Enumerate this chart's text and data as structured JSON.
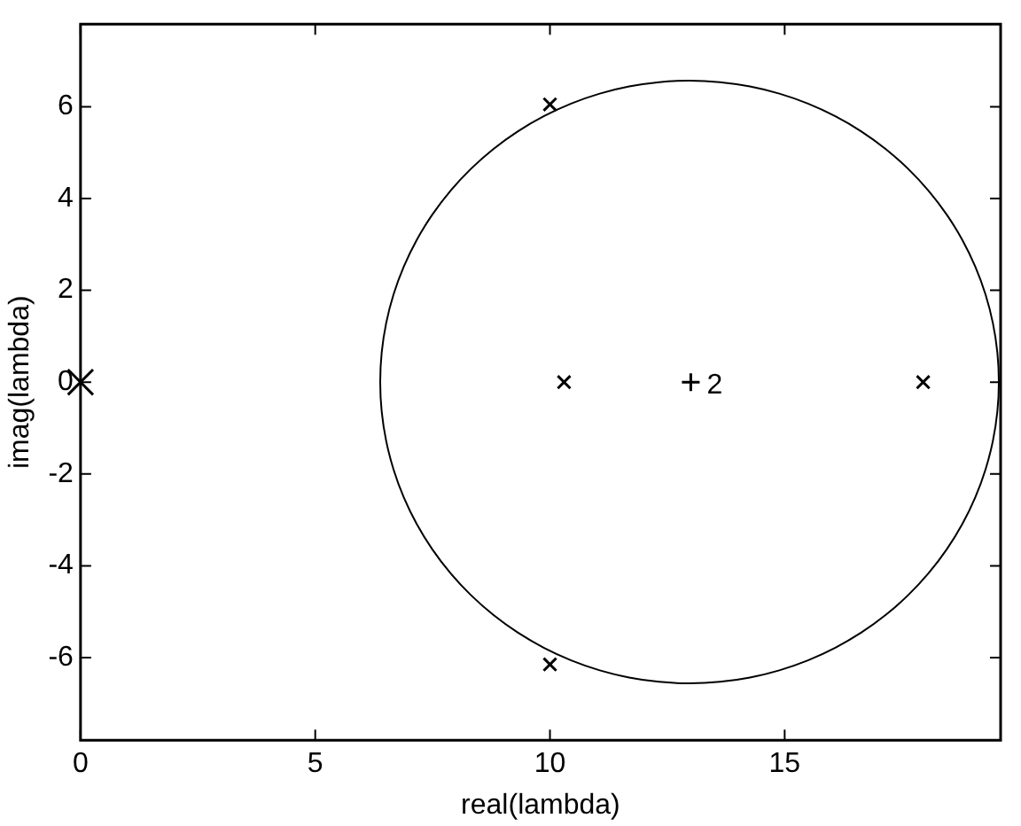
{
  "chart_data": {
    "type": "scatter",
    "xlabel": "real(lambda)",
    "ylabel": "imag(lambda)",
    "xlim": [
      0,
      19.6
    ],
    "ylim": [
      -7.8,
      7.8
    ],
    "xticks": [
      0,
      5,
      10,
      15
    ],
    "yticks": [
      -6,
      -4,
      -2,
      0,
      2,
      4,
      6
    ],
    "grid": false,
    "legend": false,
    "marker": "cross",
    "series": [
      {
        "type": "scatter",
        "color": "#000000",
        "x": [
          0
        ],
        "values": [
          0
        ]
      },
      {
        "type": "scatter",
        "color": "#000000",
        "x": [
          10,
          10,
          10.3,
          17.95
        ],
        "values": [
          6.05,
          -6.15,
          0,
          0
        ]
      },
      {
        "type": "scatter",
        "name": "2",
        "color": "#000000",
        "x": [
          13
        ],
        "values": [
          0
        ]
      }
    ]
  }
}
